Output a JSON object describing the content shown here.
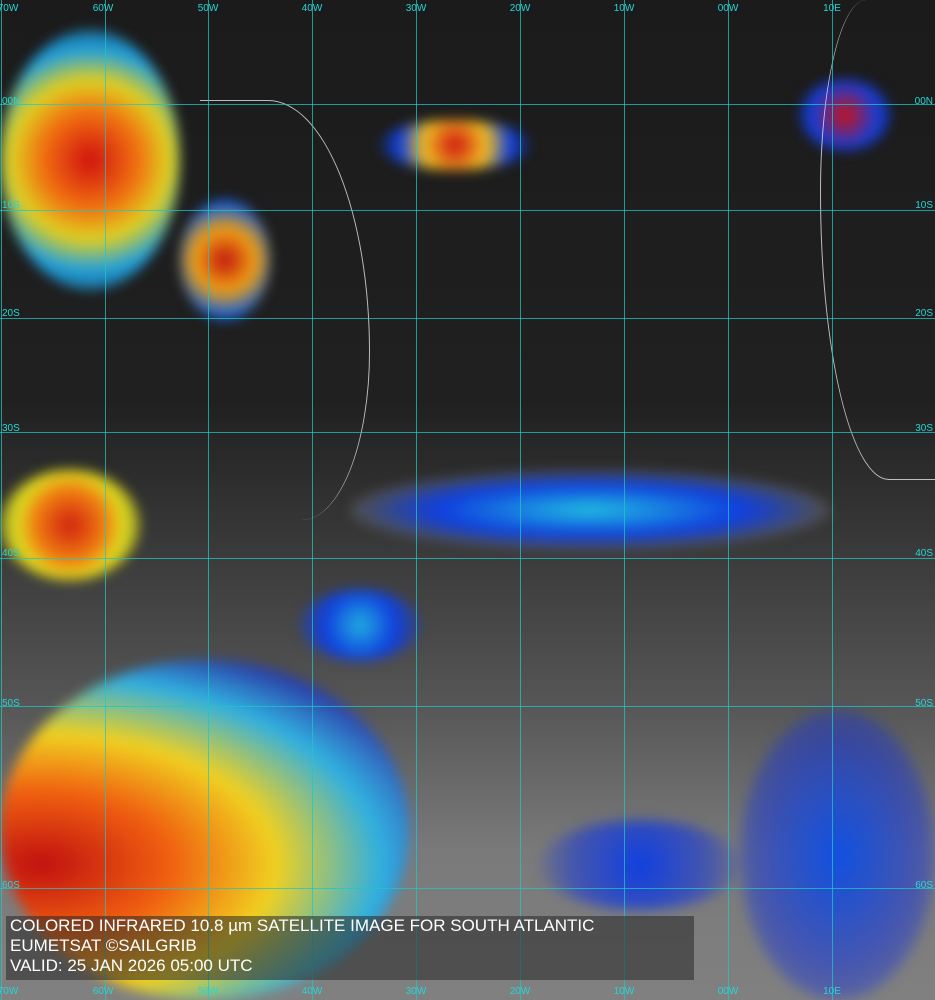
{
  "map": {
    "caption": {
      "line1": "COLORED INFRARED 10.8 µm SATELLITE IMAGE FOR SOUTH ATLANTIC",
      "line2": "EUMETSAT ©SAILGRIB",
      "line3": "VALID:  25 JAN 2026 05:00 UTC"
    },
    "longitude_labels": [
      "70W",
      "60W",
      "50W",
      "40W",
      "30W",
      "20W",
      "10W",
      "00W",
      "10E"
    ],
    "latitude_labels": [
      "00N",
      "10S",
      "20S",
      "30S",
      "40S",
      "50S",
      "60S"
    ],
    "colors": {
      "grid": "#1fc7c7",
      "cold_cloud_top": "#d01010",
      "mid": "#f0e020",
      "low": "#1030e0"
    }
  }
}
